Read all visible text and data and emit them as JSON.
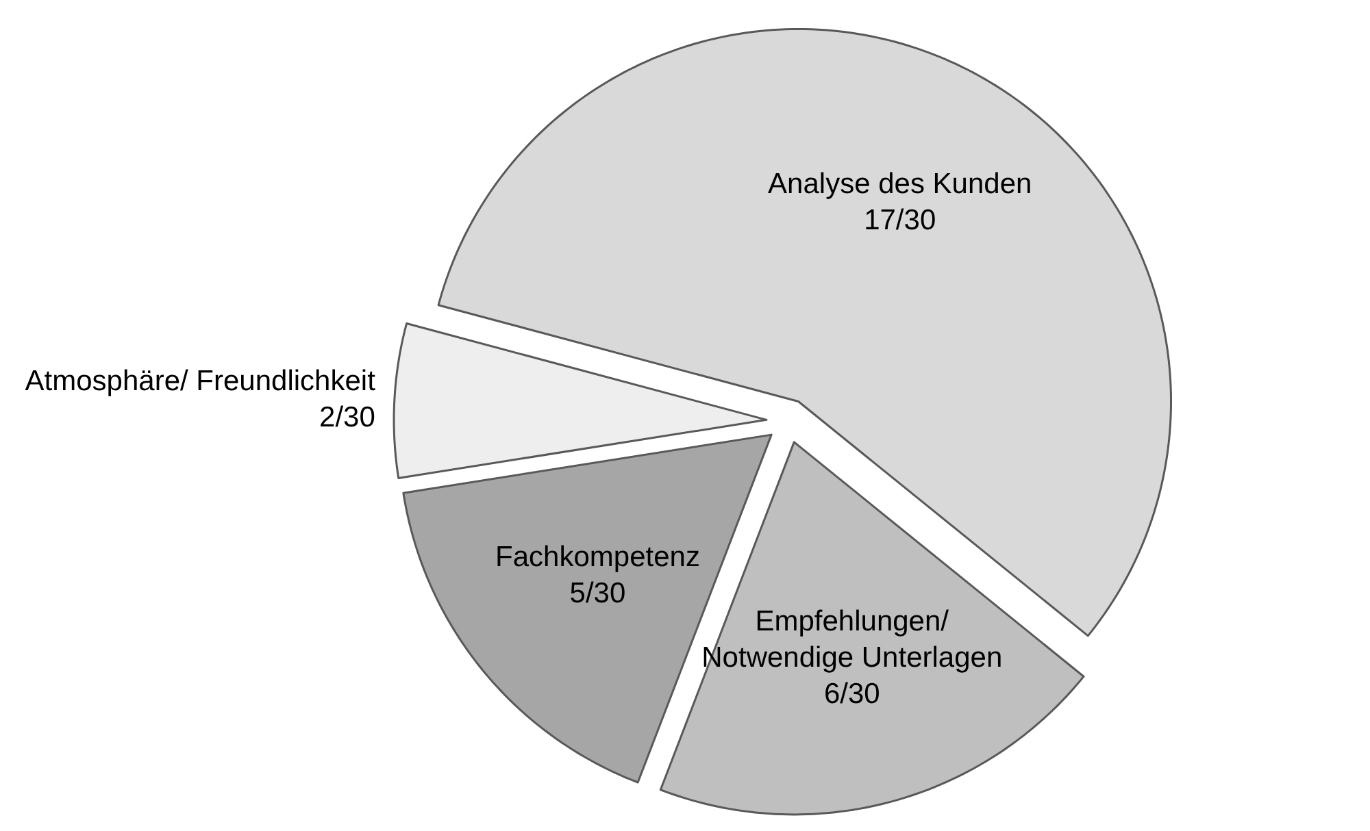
{
  "chart_data": {
    "type": "pie",
    "categories": [
      "Analyse des Kunden",
      "Empfehlungen/\nNotwendige Unterlagen",
      "Fachkompetenz",
      "Atmosphäre/ Freundlichkeit"
    ],
    "values": [
      17,
      6,
      5,
      2
    ],
    "value_labels": [
      "17/30",
      "6/30",
      "5/30",
      "2/30"
    ],
    "colors": [
      "#d9d9d9",
      "#bfbfbf",
      "#a6a6a6",
      "#eeeeee"
    ]
  }
}
